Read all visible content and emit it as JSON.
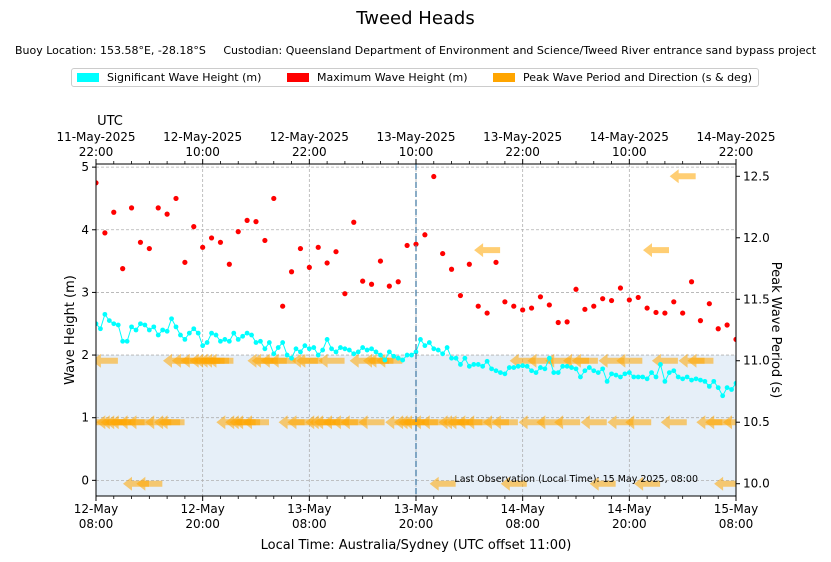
{
  "header": {
    "title": "Tweed Heads",
    "buoy_location": "Buoy Location: 153.58°E, -28.18°S",
    "custodian": "Custodian: Queensland Department of Environment and Science/Tweed River entrance sand bypass project"
  },
  "legend": [
    {
      "label": "Significant Wave Height (m)",
      "color": "#00ffff"
    },
    {
      "label": "Maximum Wave Height (m)",
      "color": "#ff0000"
    },
    {
      "label": "Peak Wave Period and Direction (s & deg)",
      "color": "#ffa500"
    }
  ],
  "chart_data": {
    "type": "line",
    "title": "Tweed Heads",
    "xlabel": "Local Time: Australia/Sydney (UTC offset 11:00)",
    "ylabel": "Wave Height (m)",
    "y2label": "Peak Wave Period (s)",
    "top_axis_label": "UTC",
    "annotation": "Last Observation (Local Time): 15 May 2025, 08:00",
    "ylim": [
      -0.25,
      5.05
    ],
    "y2lim": [
      9.9,
      12.6
    ],
    "xlim_hours": [
      0,
      72
    ],
    "yticks": [
      0,
      1,
      2,
      3,
      4,
      5
    ],
    "y2ticks": [
      10.0,
      10.5,
      11.0,
      11.5,
      12.0,
      12.5
    ],
    "bottom_ticks": [
      {
        "h": 0,
        "line1": "12-May",
        "line2": "08:00"
      },
      {
        "h": 12,
        "line1": "12-May",
        "line2": "20:00"
      },
      {
        "h": 24,
        "line1": "13-May",
        "line2": "08:00"
      },
      {
        "h": 36,
        "line1": "13-May",
        "line2": "20:00"
      },
      {
        "h": 48,
        "line1": "14-May",
        "line2": "08:00"
      },
      {
        "h": 60,
        "line1": "14-May",
        "line2": "20:00"
      },
      {
        "h": 72,
        "line1": "15-May",
        "line2": "08:00"
      }
    ],
    "top_ticks": [
      {
        "h": 0,
        "line1": "11-May-2025",
        "line2": "22:00"
      },
      {
        "h": 12,
        "line1": "12-May-2025",
        "line2": "10:00"
      },
      {
        "h": 24,
        "line1": "12-May-2025",
        "line2": "22:00"
      },
      {
        "h": 36,
        "line1": "13-May-2025",
        "line2": "10:00"
      },
      {
        "h": 48,
        "line1": "13-May-2025",
        "line2": "22:00"
      },
      {
        "h": 60,
        "line1": "14-May-2025",
        "line2": "10:00"
      },
      {
        "h": 72,
        "line1": "14-May-2025",
        "line2": "22:00"
      }
    ],
    "marker_hour": 36,
    "series": [
      {
        "name": "Significant Wave Height (m)",
        "color": "#00ffff",
        "x": [
          0,
          0.5,
          1,
          1.5,
          2,
          2.5,
          3,
          3.5,
          4,
          4.5,
          5,
          5.5,
          6,
          6.5,
          7,
          7.5,
          8,
          8.5,
          9,
          9.5,
          10,
          10.5,
          11,
          11.5,
          12,
          12.5,
          13,
          13.5,
          14,
          14.5,
          15,
          15.5,
          16,
          16.5,
          17,
          17.5,
          18,
          18.5,
          19,
          19.5,
          20,
          20.5,
          21,
          21.5,
          22,
          22.5,
          23,
          23.5,
          24,
          24.5,
          25,
          25.5,
          26,
          26.5,
          27,
          27.5,
          28,
          28.5,
          29,
          29.5,
          30,
          30.5,
          31,
          31.5,
          32,
          32.5,
          33,
          33.5,
          34,
          34.5,
          35,
          35.5,
          36,
          36.5,
          37,
          37.5,
          38,
          38.5,
          39,
          39.5,
          40,
          40.5,
          41,
          41.5,
          42,
          42.5,
          43,
          43.5,
          44,
          44.5,
          45,
          45.5,
          46,
          46.5,
          47,
          47.5,
          48,
          48.5,
          49,
          49.5,
          50,
          50.5,
          51,
          51.5,
          52,
          52.5,
          53,
          53.5,
          54,
          54.5,
          55,
          55.5,
          56,
          56.5,
          57,
          57.5,
          58,
          58.5,
          59,
          59.5,
          60,
          60.5,
          61,
          61.5,
          62,
          62.5,
          63,
          63.5,
          64,
          64.5,
          65,
          65.5,
          66,
          66.5,
          67,
          67.5,
          68,
          68.5,
          69,
          69.5,
          70,
          70.5,
          71,
          71.5,
          72
        ],
        "values": [
          2.5,
          2.42,
          2.65,
          2.55,
          2.5,
          2.48,
          2.22,
          2.22,
          2.45,
          2.4,
          2.5,
          2.48,
          2.4,
          2.45,
          2.32,
          2.4,
          2.38,
          2.58,
          2.45,
          2.32,
          2.25,
          2.35,
          2.42,
          2.35,
          2.15,
          2.2,
          2.35,
          2.32,
          2.22,
          2.25,
          2.22,
          2.35,
          2.25,
          2.3,
          2.35,
          2.32,
          2.2,
          2.22,
          2.1,
          2.2,
          2.02,
          2.12,
          2.2,
          2.0,
          1.95,
          2.1,
          2.05,
          2.15,
          2.1,
          2.12,
          2.0,
          2.08,
          2.25,
          2.1,
          2.05,
          2.12,
          2.1,
          2.08,
          2.02,
          2.05,
          2.12,
          2.08,
          2.1,
          2.05,
          2.0,
          1.92,
          2.05,
          1.98,
          1.95,
          1.92,
          2.0,
          2.0,
          2.05,
          2.25,
          2.15,
          2.2,
          2.1,
          2.08,
          2.02,
          2.12,
          1.95,
          1.95,
          1.85,
          1.95,
          1.82,
          1.85,
          1.85,
          1.82,
          1.9,
          1.78,
          1.75,
          1.72,
          1.7,
          1.8,
          1.8,
          1.82,
          1.83,
          1.82,
          1.75,
          1.72,
          1.8,
          1.78,
          1.95,
          1.72,
          1.72,
          1.82,
          1.82,
          1.8,
          1.78,
          1.65,
          1.75,
          1.8,
          1.75,
          1.72,
          1.78,
          1.58,
          1.7,
          1.68,
          1.65,
          1.7,
          1.72,
          1.65,
          1.65,
          1.65,
          1.62,
          1.72,
          1.65,
          1.85,
          1.58,
          1.72,
          1.75,
          1.65,
          1.62,
          1.65,
          1.6,
          1.62,
          1.6,
          1.58,
          1.5,
          1.58,
          1.48,
          1.35,
          1.48,
          1.45,
          1.55
        ]
      },
      {
        "name": "Maximum Wave Height (m)",
        "color": "#ff0000",
        "x": [
          0,
          1,
          2,
          3,
          4,
          5,
          6,
          7,
          8,
          9,
          10,
          11,
          12,
          13,
          14,
          15,
          16,
          17,
          18,
          19,
          20,
          21,
          22,
          23,
          24,
          25,
          26,
          27,
          28,
          29,
          30,
          31,
          32,
          33,
          34,
          35,
          36,
          37,
          38,
          39,
          40,
          41,
          42,
          43,
          44,
          45,
          46,
          47,
          48,
          49,
          50,
          51,
          52,
          53,
          54,
          55,
          56,
          57,
          58,
          59,
          60,
          61,
          62,
          63,
          64,
          65,
          66,
          67,
          68,
          69,
          70,
          71,
          72
        ],
        "values": [
          4.75,
          3.95,
          4.28,
          3.38,
          4.35,
          3.8,
          3.7,
          4.35,
          4.25,
          4.5,
          3.48,
          4.05,
          3.72,
          3.87,
          3.8,
          3.45,
          3.97,
          4.15,
          4.13,
          3.83,
          4.5,
          2.78,
          3.33,
          3.7,
          3.4,
          3.72,
          3.47,
          3.65,
          2.98,
          4.12,
          3.18,
          3.13,
          3.5,
          3.1,
          3.17,
          3.75,
          3.77,
          3.92,
          4.85,
          3.62,
          3.37,
          2.95,
          3.45,
          2.78,
          2.67,
          3.48,
          2.85,
          2.78,
          2.72,
          2.75,
          2.93,
          2.8,
          2.52,
          2.53,
          3.05,
          2.73,
          2.78,
          2.9,
          2.87,
          3.07,
          2.88,
          2.92,
          2.75,
          2.68,
          2.67,
          2.85,
          2.67,
          3.17,
          2.55,
          2.82,
          2.42,
          2.48,
          2.25
        ]
      },
      {
        "name": "Peak Wave Period and Direction (s & deg)",
        "color": "#ffa500",
        "x": [
          0,
          1,
          1.5,
          2,
          2.5,
          3,
          4,
          4.5,
          5,
          6,
          7,
          8,
          8.5,
          9,
          10,
          11,
          12,
          12.5,
          13,
          13.5,
          14,
          15,
          16,
          16.5,
          17,
          18,
          18.5,
          19,
          20,
          21,
          22,
          23,
          23.5,
          24,
          25,
          25.5,
          26,
          26.5,
          27,
          28,
          29,
          30,
          31,
          31.5,
          32,
          33,
          34,
          35,
          35.5,
          36,
          37,
          38,
          39,
          40,
          40.5,
          41,
          42,
          43,
          44,
          45,
          46,
          47,
          48,
          49,
          50,
          51,
          52,
          53,
          54,
          55,
          56,
          57,
          58,
          59,
          60,
          61,
          62,
          63,
          64,
          65,
          66,
          67,
          68,
          69,
          70,
          71,
          72
        ],
        "values": [
          10.5,
          11.0,
          10.5,
          10.5,
          10.5,
          10.5,
          10.5,
          10.0,
          10.5,
          10.0,
          10.5,
          10.5,
          10.5,
          11.0,
          11.0,
          11.0,
          11.0,
          11.0,
          11.0,
          11.0,
          11.0,
          10.5,
          10.5,
          10.5,
          10.5,
          10.5,
          11.0,
          11.0,
          11.0,
          11.0,
          10.5,
          10.5,
          11.0,
          11.0,
          10.5,
          10.5,
          10.5,
          11.0,
          10.5,
          10.5,
          10.5,
          11.0,
          10.5,
          11.0,
          11.0,
          11.0,
          10.5,
          10.5,
          10.5,
          10.5,
          10.5,
          10.5,
          10.0,
          10.5,
          10.5,
          10.5,
          10.5,
          10.5,
          11.9,
          10.5,
          10.5,
          10.0,
          11.0,
          10.5,
          11.0,
          10.5,
          11.0,
          10.5,
          11.0,
          11.0,
          10.5,
          10.0,
          11.0,
          10.5,
          11.0,
          10.5,
          10.0,
          11.9,
          11.0,
          10.5,
          12.5,
          11.0,
          11.0,
          10.5,
          10.5,
          10.0,
          10.5
        ]
      }
    ]
  }
}
